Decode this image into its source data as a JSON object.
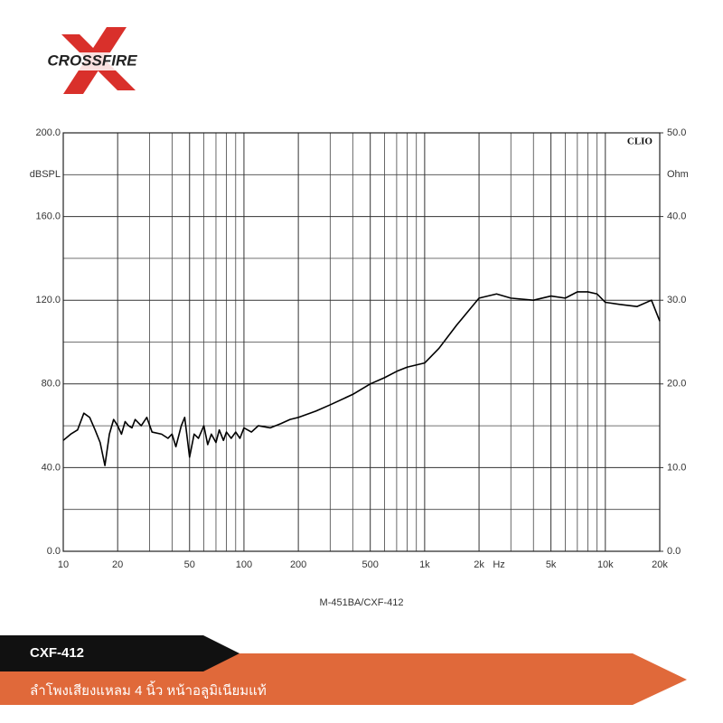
{
  "logo": "CROSSFIRE",
  "banner": {
    "model": "CXF-412",
    "description": "ลำโพงเสียงแหลม 4 นิ้ว หน้าอลูมิเนียมแท้"
  },
  "chart_data": {
    "type": "line",
    "caption": "M-451BA/CXF-412",
    "watermark": "CLIO",
    "ylabel": "dBSPL",
    "y2label": "Ohm",
    "x_unit": "Hz",
    "xscale": "log",
    "grid": true,
    "xlim": [
      10,
      20000
    ],
    "xticks": [
      10,
      20,
      50,
      100,
      200,
      500,
      {
        "value": 1000,
        "label": "1k"
      },
      {
        "value": 2000,
        "label": "2k"
      },
      {
        "value": 5000,
        "label": "5k"
      },
      {
        "value": 10000,
        "label": "10k"
      },
      {
        "value": 20000,
        "label": "20k"
      }
    ],
    "xminorticks": [
      30,
      40,
      60,
      70,
      80,
      90,
      300,
      400,
      600,
      700,
      800,
      900,
      3000,
      4000,
      6000,
      7000,
      8000,
      9000
    ],
    "ylim": [
      0,
      200
    ],
    "yticks": [
      {
        "value": 0,
        "label": "0.0"
      },
      {
        "value": 40,
        "label": "40.0"
      },
      {
        "value": 80,
        "label": "80.0"
      },
      {
        "value": 120,
        "label": "120.0"
      },
      {
        "value": 160,
        "label": "160.0"
      },
      {
        "value": 200,
        "label": "200.0"
      }
    ],
    "yminorticks": [
      20,
      60,
      100,
      140,
      180
    ],
    "y2lim": [
      0,
      50
    ],
    "y2ticks": [
      {
        "value": 0,
        "label": "0.0"
      },
      {
        "value": 10,
        "label": "10.0"
      },
      {
        "value": 20,
        "label": "20.0"
      },
      {
        "value": 30,
        "label": "30.0"
      },
      {
        "value": 40,
        "label": "40.0"
      },
      {
        "value": 50,
        "label": "50.0"
      }
    ],
    "x": [
      10,
      11,
      12,
      13,
      14,
      15,
      16,
      17,
      18,
      19,
      20,
      21,
      22,
      23,
      24,
      25,
      27,
      29,
      31,
      35,
      38,
      40,
      42,
      45,
      47,
      50,
      53,
      56,
      60,
      63,
      66,
      70,
      73,
      77,
      80,
      85,
      90,
      95,
      100,
      110,
      120,
      140,
      160,
      180,
      200,
      250,
      300,
      400,
      500,
      600,
      700,
      800,
      1000,
      1200,
      1500,
      2000,
      2500,
      3000,
      4000,
      5000,
      6000,
      7000,
      8000,
      9000,
      10000,
      12000,
      15000,
      18000,
      20000
    ],
    "series": [
      {
        "name": "SPL",
        "color": "#000000",
        "values": [
          53,
          56,
          58,
          66,
          64,
          58,
          52,
          41,
          56,
          63,
          60,
          56,
          62,
          60,
          59,
          63,
          60,
          64,
          57,
          56,
          54,
          56,
          50,
          60,
          64,
          45,
          56,
          54,
          60,
          51,
          56,
          52,
          58,
          53,
          57,
          54,
          57,
          54,
          59,
          57,
          60,
          59,
          61,
          63,
          64,
          67,
          70,
          75,
          80,
          83,
          86,
          88,
          90,
          97,
          108,
          121,
          123,
          121,
          120,
          122,
          121,
          124,
          124,
          123,
          119,
          118,
          117,
          120,
          110
        ]
      }
    ]
  }
}
